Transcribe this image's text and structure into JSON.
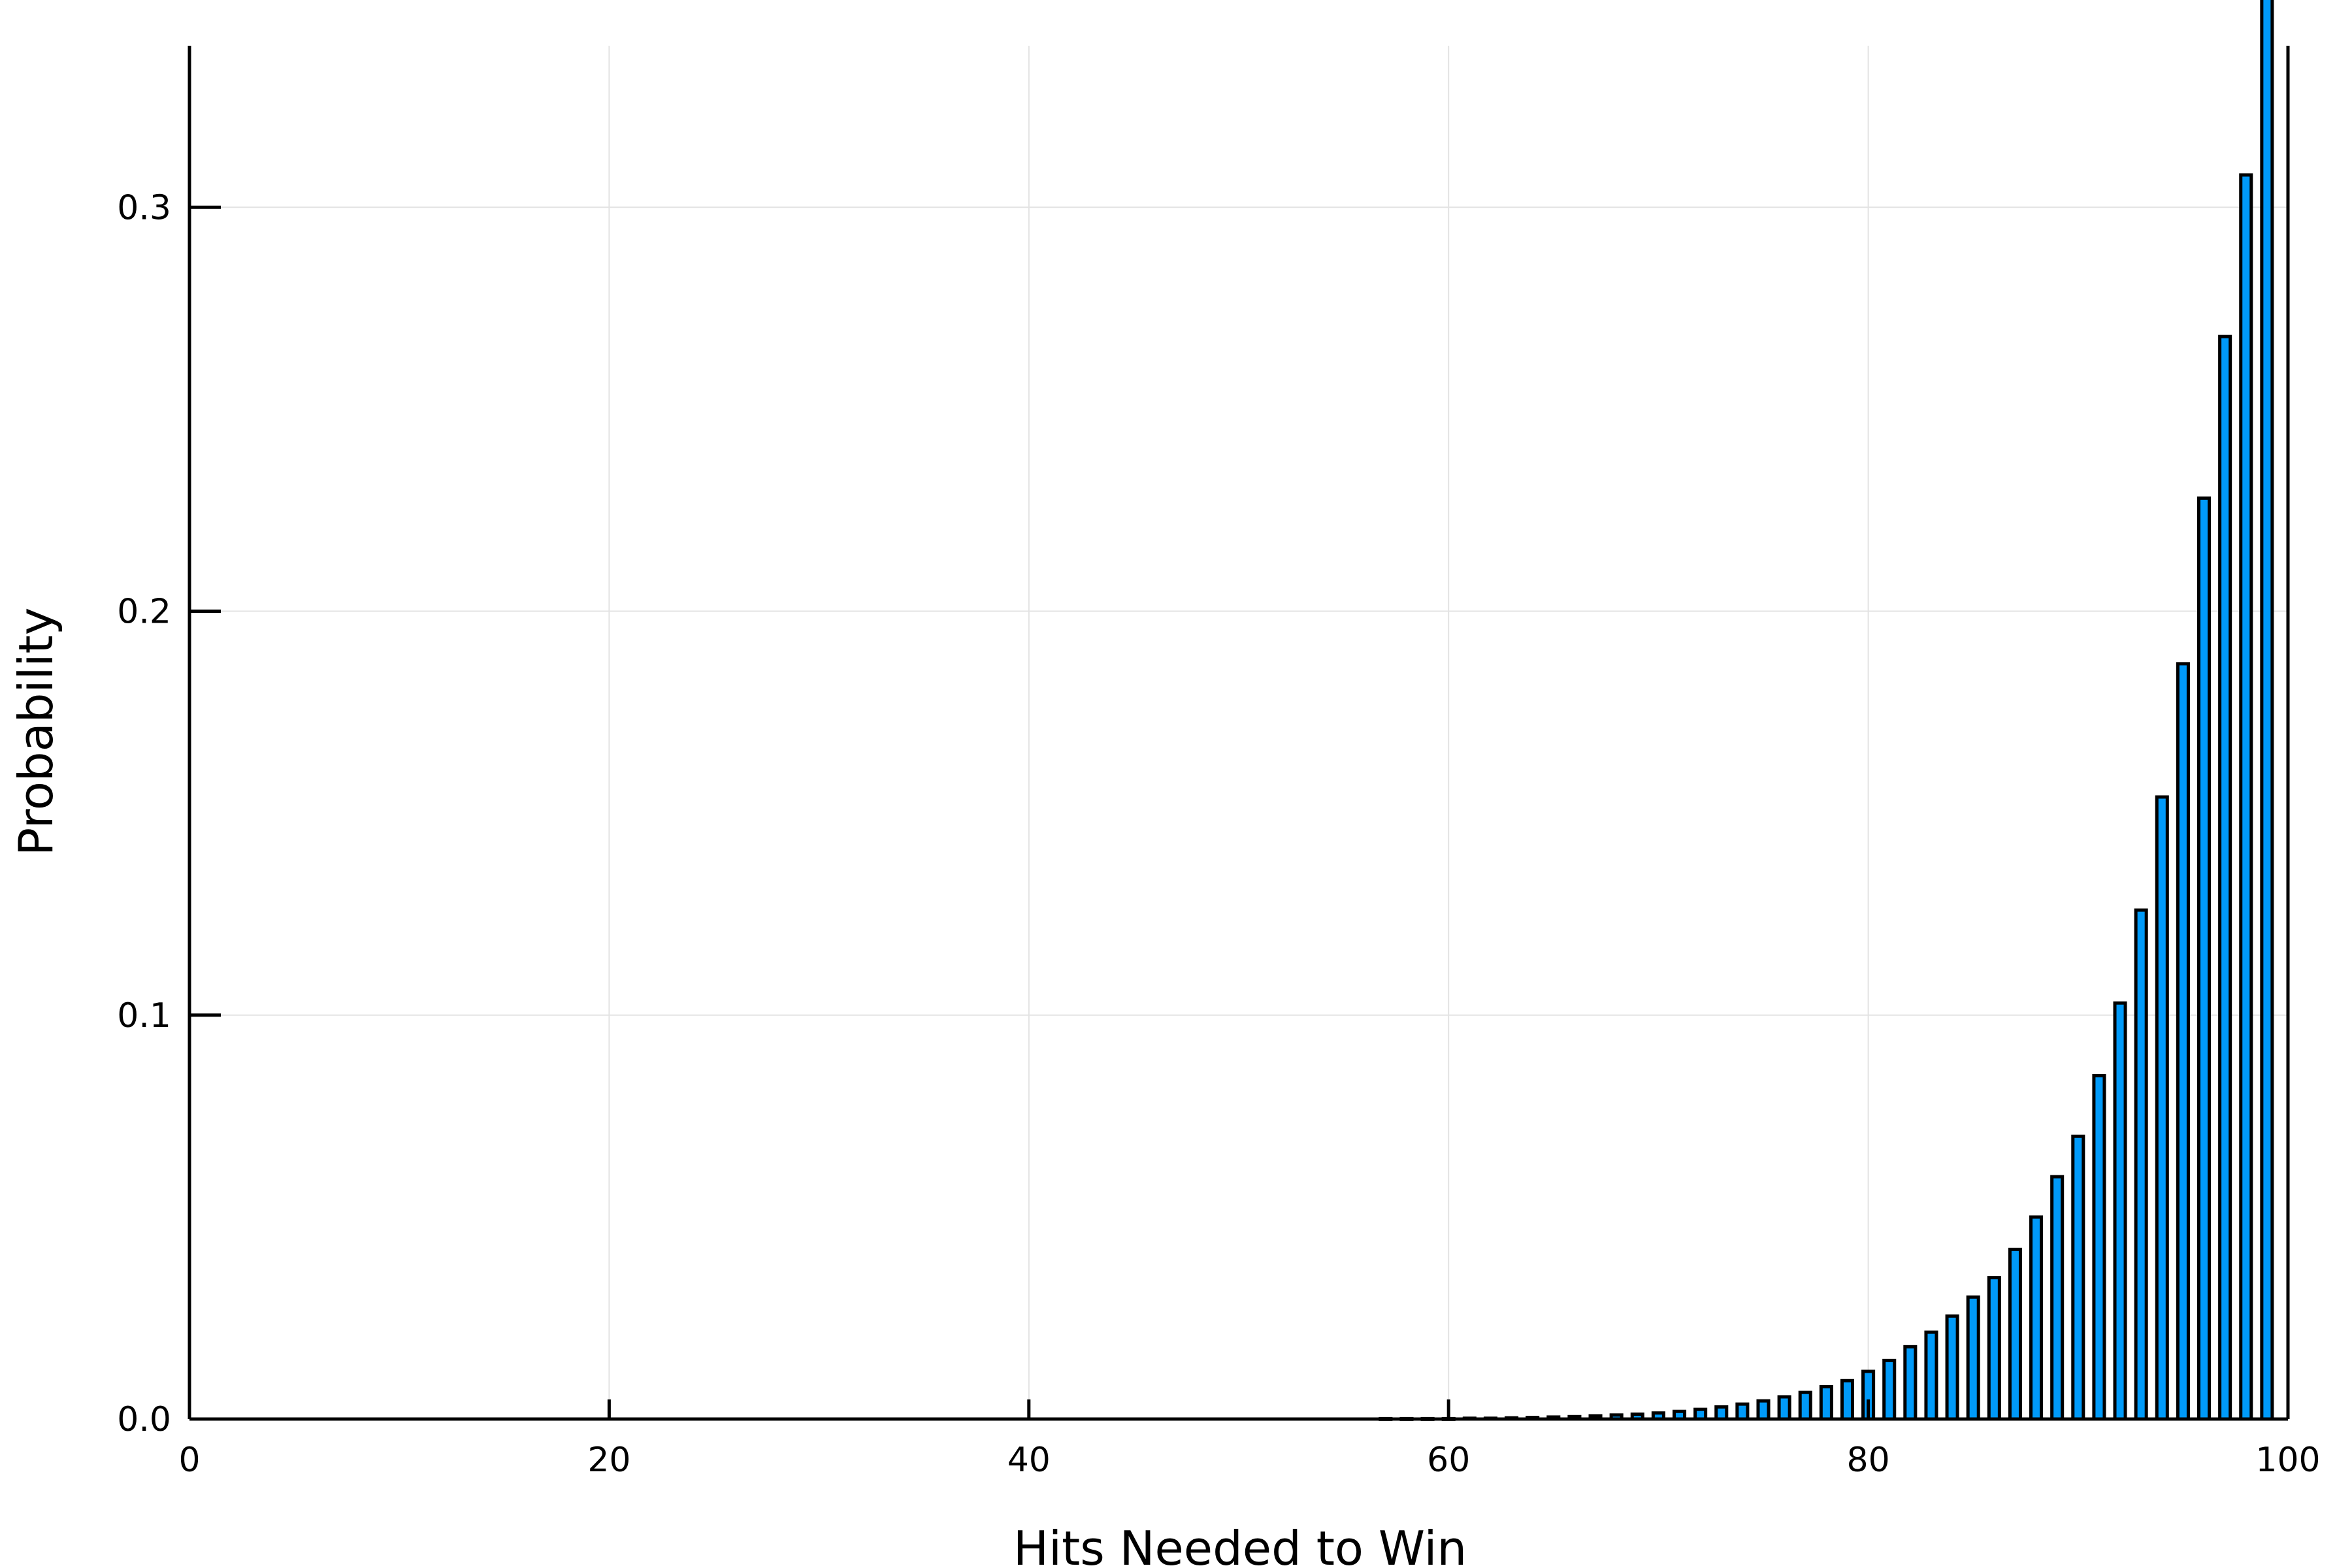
{
  "chart_data": {
    "type": "bar",
    "xlabel": "Hits Needed to Win",
    "ylabel": "Probability",
    "xlim": [
      0,
      100
    ],
    "ylim": [
      0,
      0.34
    ],
    "grid": true,
    "legend": "none",
    "x_ticks": [
      0,
      20,
      40,
      60,
      80,
      100
    ],
    "x_tick_labels": [
      "0",
      "20",
      "40",
      "60",
      "80",
      "100"
    ],
    "y_ticks": [
      0.0,
      0.1,
      0.2,
      0.3
    ],
    "y_tick_labels": [
      "0.0",
      "0.1",
      "0.2",
      "0.3"
    ],
    "bar_color": "#009af9",
    "series": [
      {
        "x": [
          57,
          58,
          59,
          60,
          61,
          62,
          63,
          64,
          65,
          66,
          67,
          68,
          69,
          70,
          71,
          72,
          73,
          74,
          75,
          76,
          77,
          78,
          79,
          80,
          81,
          82,
          83,
          84,
          85,
          86,
          87,
          88,
          89,
          90,
          91,
          92,
          93,
          94,
          95,
          96,
          97,
          98,
          99
        ],
        "values": [
          0.0001,
          0.0001,
          0.0001,
          0.0001,
          0.0002,
          0.0002,
          0.0003,
          0.0004,
          0.0005,
          0.0006,
          0.0008,
          0.001,
          0.0012,
          0.0015,
          0.0019,
          0.0024,
          0.003,
          0.0037,
          0.0045,
          0.0055,
          0.0066,
          0.008,
          0.0095,
          0.0118,
          0.0145,
          0.0179,
          0.0215,
          0.0255,
          0.0302,
          0.035,
          0.042,
          0.05,
          0.06,
          0.07,
          0.085,
          0.103,
          0.126,
          0.154,
          0.187,
          0.228,
          0.268,
          0.308,
          0.355
        ]
      }
    ]
  }
}
